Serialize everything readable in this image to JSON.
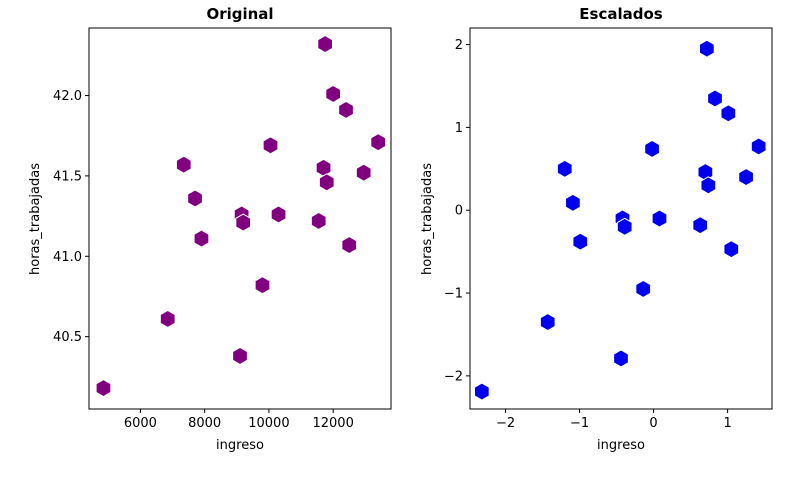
{
  "chart_data": [
    {
      "type": "scatter",
      "title": "Original",
      "xlabel": "ingreso",
      "ylabel": "horas_trabajadas",
      "xlim": [
        4400,
        13800
      ],
      "ylim": [
        40.05,
        42.42
      ],
      "xticks": [
        6000,
        8000,
        10000,
        12000
      ],
      "xtick_labels": [
        "6000",
        "8000",
        "10000",
        "12000"
      ],
      "yticks": [
        40.5,
        41.0,
        41.5,
        42.0
      ],
      "ytick_labels": [
        "40.5",
        "41.0",
        "41.5",
        "42.0"
      ],
      "grid": false,
      "marker": "hexagon",
      "color": "#800080",
      "x": [
        4850,
        6850,
        7350,
        7700,
        7900,
        9100,
        9150,
        9200,
        9800,
        10050,
        10300,
        11550,
        11700,
        11750,
        11800,
        12000,
        12400,
        12500,
        12950,
        13400
      ],
      "y": [
        40.18,
        40.61,
        41.57,
        41.36,
        41.11,
        40.38,
        41.26,
        41.21,
        40.82,
        41.69,
        41.26,
        41.22,
        41.55,
        42.32,
        41.46,
        42.01,
        41.91,
        41.07,
        41.52,
        41.71
      ]
    },
    {
      "type": "scatter",
      "title": "Escalados",
      "xlabel": "ingreso",
      "ylabel": "horas_trabajadas",
      "xlim": [
        -2.48,
        1.6
      ],
      "ylim": [
        -2.4,
        2.2
      ],
      "xticks": [
        -2,
        -1,
        0,
        1
      ],
      "xtick_labels": [
        "−2",
        "−1",
        "0",
        "1"
      ],
      "yticks": [
        -2,
        -1,
        0,
        1,
        2
      ],
      "ytick_labels": [
        "−2",
        "−1",
        "0",
        "1",
        "2"
      ],
      "grid": false,
      "marker": "hexagon",
      "color": "#0000ee",
      "x": [
        -2.32,
        -1.43,
        -1.2,
        -1.09,
        -0.99,
        -0.44,
        -0.42,
        -0.39,
        -0.14,
        -0.02,
        0.08,
        0.63,
        0.7,
        0.72,
        0.74,
        0.83,
        1.01,
        1.05,
        1.25,
        1.42
      ],
      "y": [
        -2.19,
        -1.35,
        0.5,
        0.09,
        -0.38,
        -1.79,
        -0.1,
        -0.2,
        -0.95,
        0.74,
        -0.1,
        -0.18,
        0.46,
        1.95,
        0.3,
        1.35,
        1.17,
        -0.47,
        0.4,
        0.77
      ]
    }
  ]
}
